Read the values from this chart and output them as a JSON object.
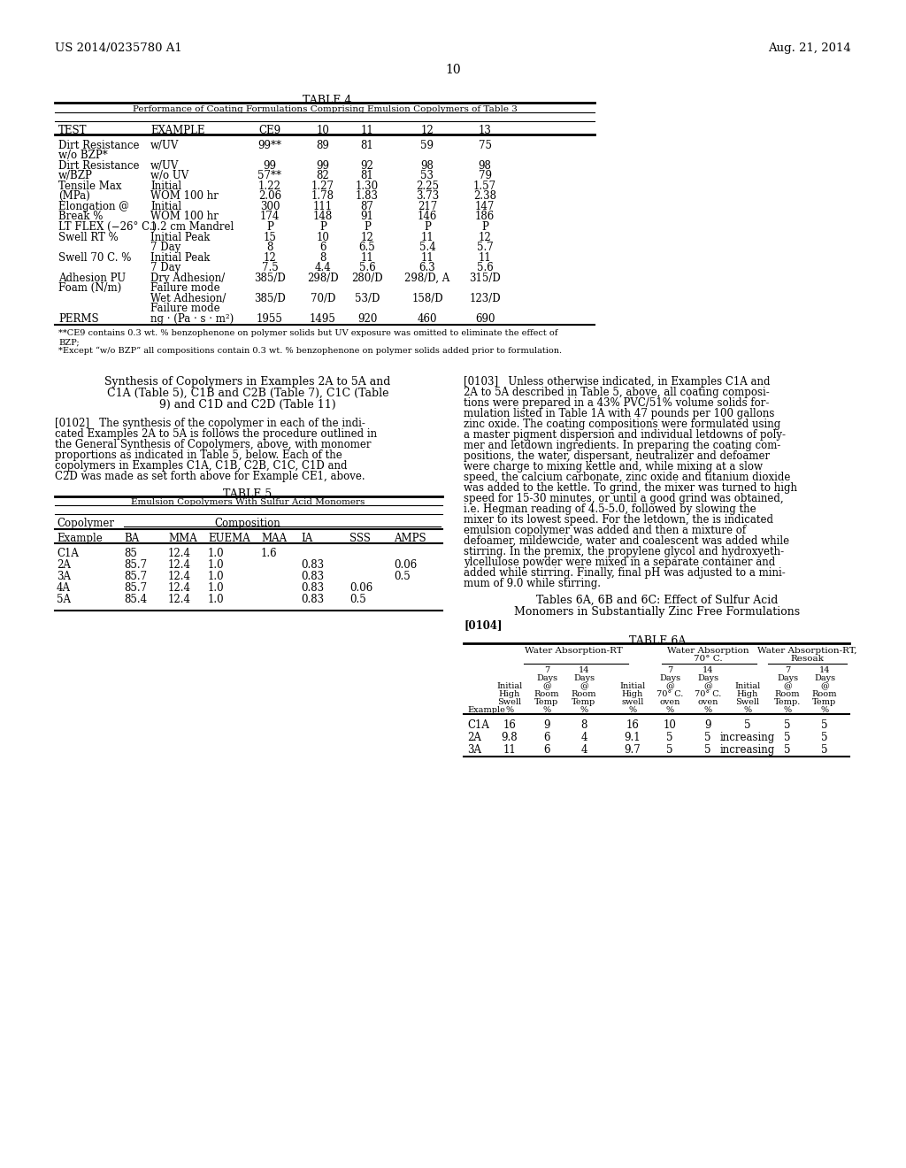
{
  "bg_color": "#ffffff",
  "header_left": "US 2014/0235780 A1",
  "header_right": "Aug. 21, 2014",
  "page_number": "10",
  "table4_title": "TABLE 4",
  "table4_subtitle": "Performance of Coating Formulations Comprising Emulsion Copolymers of Table 3",
  "table5_title": "TABLE 5",
  "table5_subtitle": "Emulsion Copolymers With Sulfur Acid Monomers",
  "table6a_title": "TABLE 6A"
}
